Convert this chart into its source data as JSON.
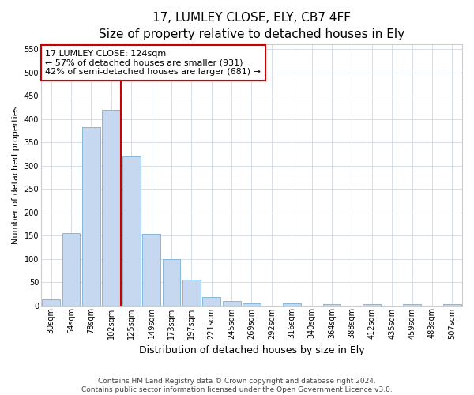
{
  "title": "17, LUMLEY CLOSE, ELY, CB7 4FF",
  "subtitle": "Size of property relative to detached houses in Ely",
  "xlabel": "Distribution of detached houses by size in Ely",
  "ylabel": "Number of detached properties",
  "categories": [
    "30sqm",
    "54sqm",
    "78sqm",
    "102sqm",
    "125sqm",
    "149sqm",
    "173sqm",
    "197sqm",
    "221sqm",
    "245sqm",
    "269sqm",
    "292sqm",
    "316sqm",
    "340sqm",
    "364sqm",
    "388sqm",
    "412sqm",
    "435sqm",
    "459sqm",
    "483sqm",
    "507sqm"
  ],
  "values": [
    13,
    155,
    382,
    420,
    320,
    153,
    100,
    55,
    18,
    10,
    5,
    0,
    5,
    0,
    2,
    0,
    3,
    0,
    2,
    0,
    2
  ],
  "bar_color": "#c5d8ef",
  "bar_edge_color": "#7aafd4",
  "vline_x": 3.5,
  "vline_color": "#cc0000",
  "annotation_text": "17 LUMLEY CLOSE: 124sqm\n← 57% of detached houses are smaller (931)\n42% of semi-detached houses are larger (681) →",
  "annotation_box_color": "#ffffff",
  "annotation_box_edge": "#cc0000",
  "ylim": [
    0,
    560
  ],
  "yticks": [
    0,
    50,
    100,
    150,
    200,
    250,
    300,
    350,
    400,
    450,
    500,
    550
  ],
  "footer": "Contains HM Land Registry data © Crown copyright and database right 2024.\nContains public sector information licensed under the Open Government Licence v3.0.",
  "title_fontsize": 11,
  "subtitle_fontsize": 9.5,
  "xlabel_fontsize": 9,
  "ylabel_fontsize": 8,
  "tick_fontsize": 7,
  "annotation_fontsize": 8,
  "footer_fontsize": 6.5
}
